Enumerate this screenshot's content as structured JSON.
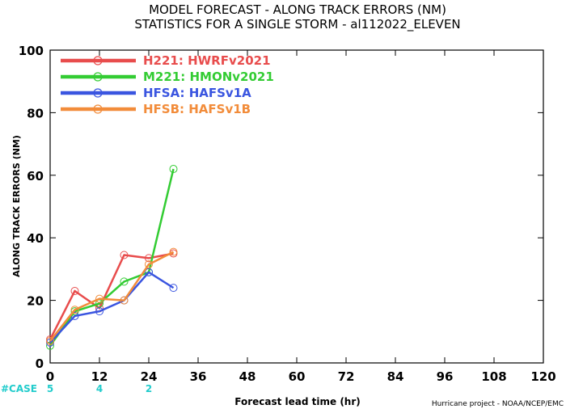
{
  "chart_data": {
    "type": "line",
    "title": "MODEL FORECAST - ALONG TRACK ERRORS (NM)",
    "subtitle": "STATISTICS FOR A SINGLE STORM - al112022_ELEVEN",
    "xlabel": "Forecast lead time (hr)",
    "ylabel": "ALONG TRACK ERRORS (NM)",
    "xlim": [
      0,
      120
    ],
    "ylim": [
      0,
      100
    ],
    "xticks": [
      0,
      12,
      24,
      36,
      48,
      60,
      72,
      84,
      96,
      108,
      120
    ],
    "yticks": [
      0,
      20,
      40,
      60,
      80,
      100
    ],
    "grid": false,
    "legend_position": "top-left",
    "series": [
      {
        "name": "H221: HWRFv2021",
        "color": "#e84c4c",
        "x": [
          0,
          6,
          12,
          18,
          24,
          30
        ],
        "y": [
          7.5,
          23,
          17.5,
          34.5,
          33.5,
          35
        ]
      },
      {
        "name": "M221: HMONv2021",
        "color": "#33cc33",
        "x": [
          0,
          6,
          12,
          18,
          24,
          30
        ],
        "y": [
          5.5,
          16.5,
          19,
          26,
          29,
          62
        ]
      },
      {
        "name": "HFSA: HAFSv1A",
        "color": "#3a55e0",
        "x": [
          0,
          6,
          12,
          18,
          24,
          30
        ],
        "y": [
          6.5,
          15,
          16.5,
          20,
          29,
          24
        ]
      },
      {
        "name": "HFSB: HAFSv1B",
        "color": "#f28c3a",
        "x": [
          0,
          6,
          12,
          18,
          24,
          30
        ],
        "y": [
          7,
          17,
          20.5,
          20,
          31.5,
          35.5
        ]
      }
    ],
    "cases": {
      "label": "#CASE",
      "color": "#22cccc",
      "entries": [
        {
          "x": 0,
          "count": "5"
        },
        {
          "x": 12,
          "count": "4"
        },
        {
          "x": 24,
          "count": "2"
        }
      ]
    },
    "footer": "Hurricane project - NOAA/NCEP/EMC"
  }
}
